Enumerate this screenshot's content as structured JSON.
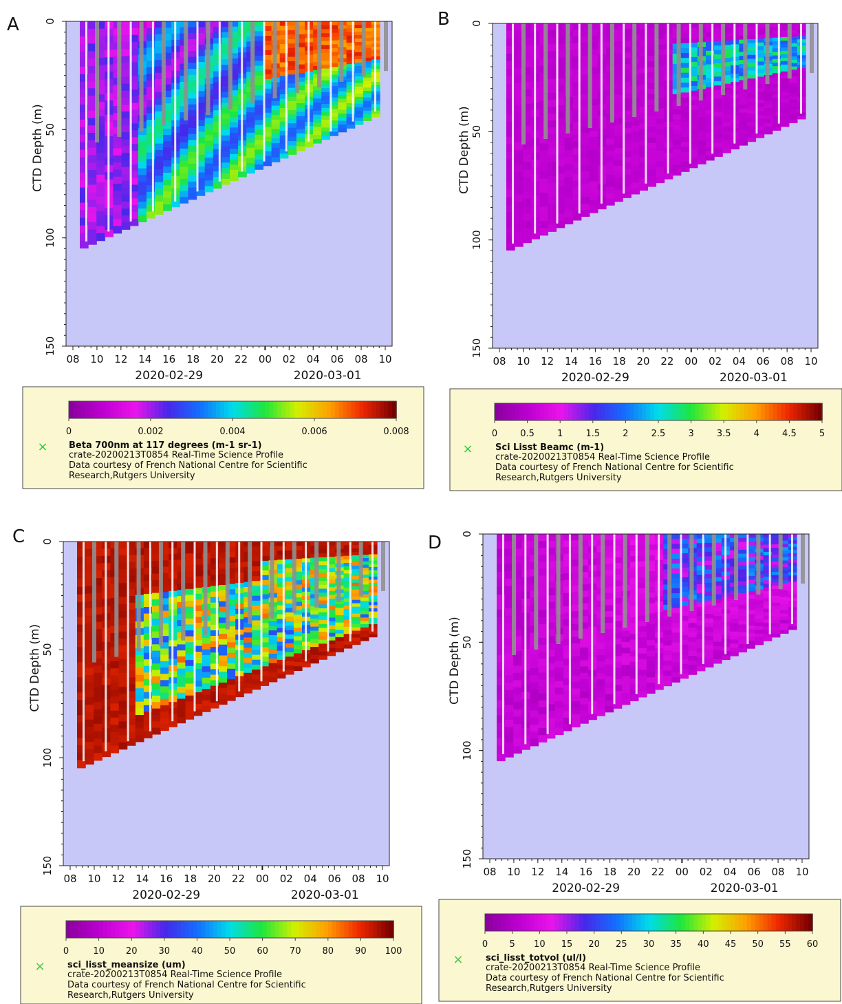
{
  "chart_data": [
    {
      "type": "heatmap",
      "panel_label": "A",
      "xlabel": "",
      "ylabel": "CTD Depth (m)",
      "x_ticks": [
        "08",
        "10",
        "12",
        "14",
        "16",
        "18",
        "20",
        "22",
        "00",
        "02",
        "04",
        "06",
        "08",
        "10"
      ],
      "dates": [
        "2020-02-29",
        "2020-03-01"
      ],
      "y_ticks": [
        "0",
        "50",
        "100",
        "150"
      ],
      "ylim": [
        0,
        150
      ],
      "colormap": "rainbow",
      "color_range": [
        0,
        0.008
      ],
      "colorbar_ticks": [
        "0",
        "0.002",
        "0.004",
        "0.006",
        "0.008"
      ],
      "legend": {
        "marker_color": "#2ecc40",
        "variable": "Beta 700nm at 117 degrees (m-1 sr-1)",
        "lines": [
          "crate-20200213T0854 Real-Time Science Profile",
          "Data courtesy of French National Centre for Scientific",
          "Research,Rutgers University"
        ]
      }
    },
    {
      "type": "heatmap",
      "panel_label": "B",
      "xlabel": "",
      "ylabel": "CTD Depth (m)",
      "x_ticks": [
        "08",
        "10",
        "12",
        "14",
        "16",
        "18",
        "20",
        "22",
        "00",
        "02",
        "04",
        "06",
        "08",
        "10"
      ],
      "dates": [
        "2020-02-29",
        "2020-03-01"
      ],
      "y_ticks": [
        "0",
        "50",
        "100",
        "150"
      ],
      "ylim": [
        0,
        150
      ],
      "colormap": "rainbow",
      "color_range": [
        0,
        5
      ],
      "colorbar_ticks": [
        "0",
        "0.5",
        "1",
        "1.5",
        "2",
        "2.5",
        "3",
        "3.5",
        "4",
        "4.5",
        "5"
      ],
      "legend": {
        "marker_color": "#2ecc40",
        "variable": "Sci Lisst Beamc (m-1)",
        "lines": [
          "crate-20200213T0854 Real-Time Science Profile",
          "Data courtesy of French National Centre for Scientific",
          "Research,Rutgers University"
        ]
      }
    },
    {
      "type": "heatmap",
      "panel_label": "C",
      "xlabel": "",
      "ylabel": "CTD Depth (m)",
      "x_ticks": [
        "08",
        "10",
        "12",
        "14",
        "16",
        "18",
        "20",
        "22",
        "00",
        "02",
        "04",
        "06",
        "08",
        "10"
      ],
      "dates": [
        "2020-02-29",
        "2020-03-01"
      ],
      "y_ticks": [
        "0",
        "50",
        "100",
        "150"
      ],
      "ylim": [
        0,
        150
      ],
      "colormap": "rainbow",
      "color_range": [
        0,
        100
      ],
      "colorbar_ticks": [
        "0",
        "10",
        "20",
        "30",
        "40",
        "50",
        "60",
        "70",
        "80",
        "90",
        "100"
      ],
      "legend": {
        "marker_color": "#2ecc40",
        "variable": "sci_lisst_meansize (um)",
        "lines": [
          "crate-20200213T0854 Real-Time Science Profile",
          "Data courtesy of French National Centre for Scientific",
          "Research,Rutgers University"
        ]
      }
    },
    {
      "type": "heatmap",
      "panel_label": "D",
      "xlabel": "",
      "ylabel": "CTD Depth (m)",
      "x_ticks": [
        "08",
        "10",
        "12",
        "14",
        "16",
        "18",
        "20",
        "22",
        "00",
        "02",
        "04",
        "06",
        "08",
        "10"
      ],
      "dates": [
        "2020-02-29",
        "2020-03-01"
      ],
      "y_ticks": [
        "0",
        "50",
        "100",
        "150"
      ],
      "ylim": [
        0,
        150
      ],
      "colormap": "rainbow",
      "color_range": [
        0,
        60
      ],
      "colorbar_ticks": [
        "0",
        "5",
        "10",
        "15",
        "20",
        "25",
        "30",
        "35",
        "40",
        "45",
        "50",
        "55",
        "60"
      ],
      "legend": {
        "marker_color": "#2ecc40",
        "variable": "sci_lisst_totvol (ul/l)",
        "lines": [
          "crate-20200213T0854 Real-Time Science Profile",
          "Data courtesy of French National Centre for Scientific",
          "Research,Rutgers University"
        ]
      }
    }
  ],
  "colors": {
    "plot_background": "#c8c8f8",
    "legend_background": "#fbf7d0",
    "gap_stripe": "#909090"
  }
}
